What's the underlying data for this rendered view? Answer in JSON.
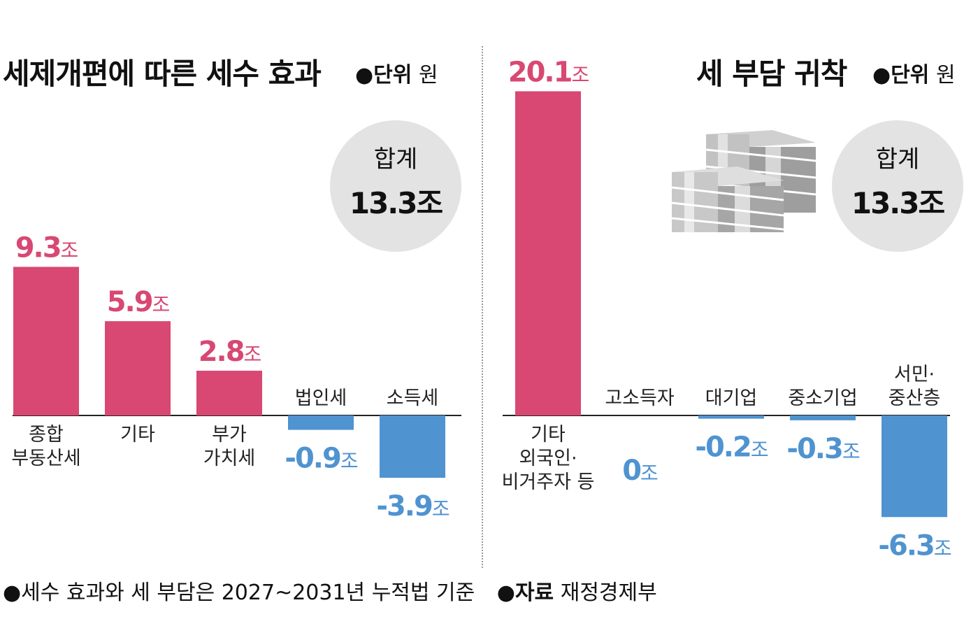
{
  "colors": {
    "positive": "#d84873",
    "negative": "#4f93d0",
    "baseline": "#222222",
    "circle": "#e3e3e3"
  },
  "chart_data": [
    {
      "type": "bar",
      "title": "세제개편에 따른 세수 효과",
      "unit_prefix": "●단위",
      "unit": "원",
      "total_label": "합계",
      "total_value": "13.3조",
      "value_suffix": "조",
      "categories": [
        [
          "종합",
          "부동산세"
        ],
        [
          "기타"
        ],
        [
          "부가",
          "가치세"
        ],
        [
          "법인세"
        ],
        [
          "소득세"
        ]
      ],
      "values": [
        9.3,
        5.9,
        2.8,
        -0.9,
        -3.9
      ],
      "value_labels": [
        "9.3",
        "5.9",
        "2.8",
        "-0.9",
        "-3.9"
      ]
    },
    {
      "type": "bar",
      "title": "세 부담 귀착",
      "unit_prefix": "●단위",
      "unit": "원",
      "total_label": "합계",
      "total_value": "13.3조",
      "value_suffix": "조",
      "icon": "money-stack-icon",
      "categories": [
        [
          "기타",
          "외국인·",
          "비거주자 등"
        ],
        [
          "고소득자"
        ],
        [
          "대기업"
        ],
        [
          "중소기업"
        ],
        [
          "서민·",
          "중산층"
        ]
      ],
      "values": [
        20.1,
        0,
        -0.2,
        -0.3,
        -6.3
      ],
      "value_labels": [
        "20.1",
        "0",
        "-0.2",
        "-0.3",
        "-6.3"
      ]
    }
  ],
  "footnote": {
    "note": "●세수 효과와 세 부담은 2027~2031년 누적법 기준",
    "source_label": "●자료",
    "source": "재정경제부"
  }
}
